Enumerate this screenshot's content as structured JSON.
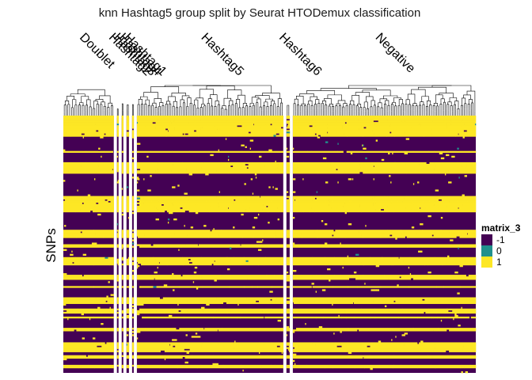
{
  "chart_data": {
    "type": "heatmap",
    "title": "knn Hashtag5 group split by Seurat HTODemux classification",
    "row_title": "SNPs",
    "column_groups": [
      {
        "label": "Doublet",
        "columns": 62
      },
      {
        "label": "Hashtag2",
        "columns": 2
      },
      {
        "label": "Hashtag3",
        "columns": 2
      },
      {
        "label": "Hashtag4",
        "columns": 3
      },
      {
        "label": "Hashtag1",
        "columns": 2
      },
      {
        "label": "Hashtag5",
        "columns": 180
      },
      {
        "label": "Hashtag6",
        "columns": 4
      },
      {
        "label": "Negative",
        "columns": 225
      }
    ],
    "row_count": 160,
    "legend": {
      "title": "matrix_3",
      "entries": [
        {
          "label": "-1",
          "value": -1,
          "color": "#440154"
        },
        {
          "label": "0",
          "value": 0,
          "color": "#21908C"
        },
        {
          "label": "1",
          "value": 1,
          "color": "#FDE725"
        }
      ]
    }
  }
}
